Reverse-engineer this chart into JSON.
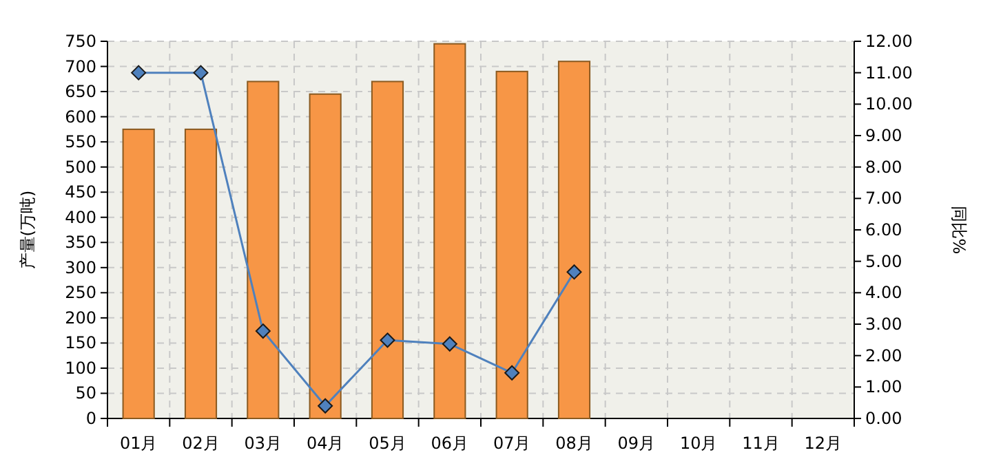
{
  "chart_data": {
    "type": "bar",
    "categories": [
      "01月",
      "02月",
      "03月",
      "04月",
      "05月",
      "06月",
      "07月",
      "08月",
      "09月",
      "10月",
      "11月",
      "12月"
    ],
    "ylabel": "产量(万吨)",
    "y2label": "同比%",
    "ylim": [
      0,
      750
    ],
    "yticks": [
      0,
      50,
      100,
      150,
      200,
      250,
      300,
      350,
      400,
      450,
      500,
      550,
      600,
      650,
      700,
      750
    ],
    "y2lim": [
      0,
      12
    ],
    "y2ticks": [
      {
        "value": 0,
        "label": "0.00"
      },
      {
        "value": 1,
        "label": "1.00"
      },
      {
        "value": 2,
        "label": "2.00"
      },
      {
        "value": 3,
        "label": "3.00"
      },
      {
        "value": 4,
        "label": "4.00"
      },
      {
        "value": 5,
        "label": "5.00"
      },
      {
        "value": 6,
        "label": "6.00"
      },
      {
        "value": 7,
        "label": "7.00"
      },
      {
        "value": 8,
        "label": "8.00"
      },
      {
        "value": 9,
        "label": "9.00"
      },
      {
        "value": 10,
        "label": "10.00"
      },
      {
        "value": 11,
        "label": "11.00"
      },
      {
        "value": 12,
        "label": "12.00"
      }
    ],
    "grid": true,
    "marker": "diamond",
    "series": [
      {
        "color": "#f79646",
        "values": [
          575,
          575,
          670,
          645,
          670,
          745,
          690,
          710,
          null,
          null,
          null,
          null
        ]
      },
      {
        "type": "line",
        "axis": "y2",
        "color": "#4f81bd",
        "values": [
          11.0,
          11.0,
          2.78,
          0.4,
          2.49,
          2.37,
          1.45,
          4.66,
          null,
          null,
          null,
          null
        ]
      }
    ]
  }
}
